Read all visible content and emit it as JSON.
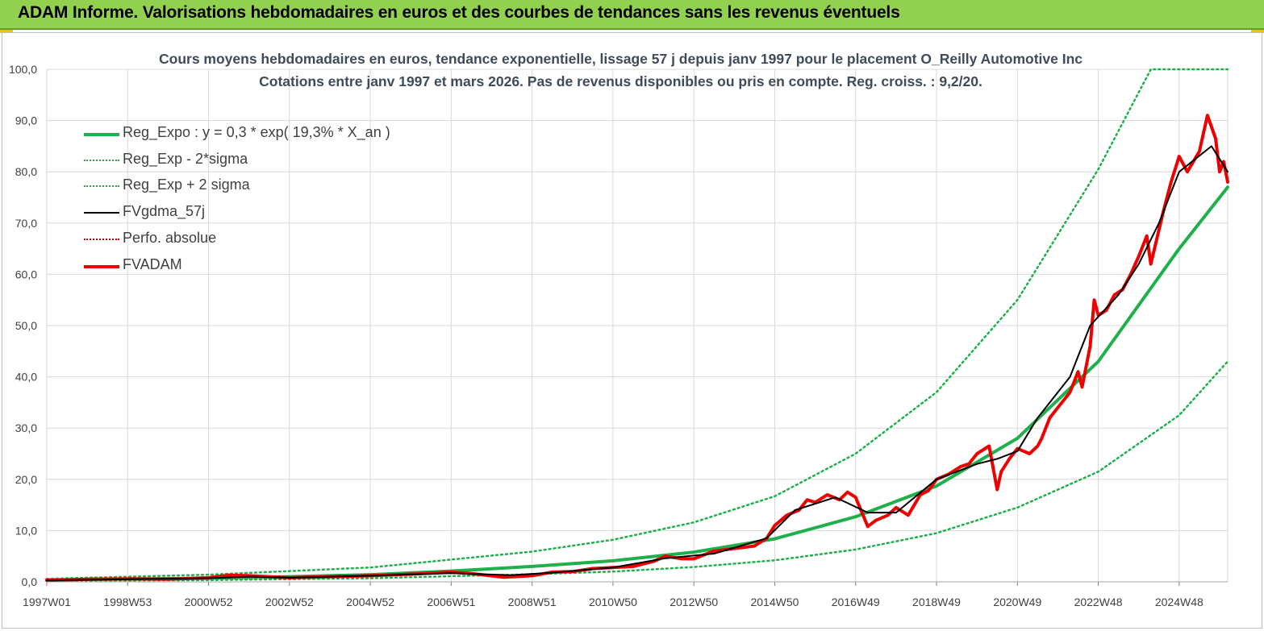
{
  "banner": {
    "title": "ADAM Informe. Valorisations hebdomadaires en euros et des courbes de tendances sans les revenus éventuels"
  },
  "colors": {
    "banner": "#92d050",
    "regexpo": "#1fb04c",
    "fvadam": "#ee0000",
    "fvgdma": "#000000",
    "perfo": "#cc0000"
  },
  "chart_data": {
    "type": "line",
    "title": "Cours moyens hebdomadaires en euros, tendance exponentielle, lissage 57 j depuis janv 1997 pour le placement O_Reilly Automotive Inc",
    "subtitle": "Cotations entre janv 1997 et mars 2026. Pas de revenus disponibles ou pris en compte. Reg. croiss. : 9,2/20.",
    "xlabel": "",
    "ylabel": "",
    "ylim": [
      0,
      100
    ],
    "yticks": [
      "0,0",
      "10,0",
      "20,0",
      "30,0",
      "40,0",
      "50,0",
      "60,0",
      "70,0",
      "80,0",
      "90,0",
      "100,0"
    ],
    "xlim": [
      1997.0,
      2026.2
    ],
    "xticks": [
      {
        "x": 1997.0,
        "label": "1997W01"
      },
      {
        "x": 1999.0,
        "label": "1998W53"
      },
      {
        "x": 2001.0,
        "label": "2000W52"
      },
      {
        "x": 2003.0,
        "label": "2002W52"
      },
      {
        "x": 2005.0,
        "label": "2004W52"
      },
      {
        "x": 2007.0,
        "label": "2006W51"
      },
      {
        "x": 2009.0,
        "label": "2008W51"
      },
      {
        "x": 2011.0,
        "label": "2010W50"
      },
      {
        "x": 2013.0,
        "label": "2012W50"
      },
      {
        "x": 2015.0,
        "label": "2014W50"
      },
      {
        "x": 2017.0,
        "label": "2016W49"
      },
      {
        "x": 2019.0,
        "label": "2018W49"
      },
      {
        "x": 2021.0,
        "label": "2020W49"
      },
      {
        "x": 2023.0,
        "label": "2022W48"
      },
      {
        "x": 2025.0,
        "label": "2024W48"
      }
    ],
    "grid": true,
    "legend_position": "top-left",
    "series": [
      {
        "name": "Reg_Expo : y = 0,3 * exp( 19,3% *  X_an )",
        "style": "solid-thick",
        "color": "#1fb04c",
        "points": [
          [
            1997,
            0.4
          ],
          [
            1999,
            0.55
          ],
          [
            2001,
            0.7
          ],
          [
            2003,
            1.0
          ],
          [
            2005,
            1.4
          ],
          [
            2007,
            2.1
          ],
          [
            2009,
            3.0
          ],
          [
            2011,
            4.1
          ],
          [
            2013,
            5.8
          ],
          [
            2015,
            8.4
          ],
          [
            2017,
            12.7
          ],
          [
            2019,
            18.7
          ],
          [
            2021,
            28.0
          ],
          [
            2023,
            43.0
          ],
          [
            2025,
            65.0
          ],
          [
            2026.2,
            77.0
          ]
        ]
      },
      {
        "name": "Reg_Exp - 2*sigma",
        "style": "dotted",
        "color": "#1fb04c",
        "points": [
          [
            1997,
            0.2
          ],
          [
            2001,
            0.35
          ],
          [
            2005,
            0.7
          ],
          [
            2009,
            1.5
          ],
          [
            2011,
            2.0
          ],
          [
            2013,
            2.9
          ],
          [
            2015,
            4.2
          ],
          [
            2017,
            6.3
          ],
          [
            2019,
            9.5
          ],
          [
            2021,
            14.5
          ],
          [
            2023,
            21.5
          ],
          [
            2025,
            32.5
          ],
          [
            2026.2,
            43.0
          ]
        ]
      },
      {
        "name": "Reg_Exp + 2 sigma",
        "style": "dotted",
        "color": "#1fb04c",
        "points": [
          [
            1997,
            0.6
          ],
          [
            2001,
            1.4
          ],
          [
            2005,
            2.8
          ],
          [
            2009,
            5.9
          ],
          [
            2011,
            8.2
          ],
          [
            2013,
            11.6
          ],
          [
            2015,
            16.7
          ],
          [
            2017,
            25.0
          ],
          [
            2019,
            37.0
          ],
          [
            2021,
            55.0
          ],
          [
            2023,
            80.5
          ],
          [
            2024.3,
            100
          ],
          [
            2026.2,
            100
          ]
        ]
      },
      {
        "name": "FVgdma_57j",
        "style": "solid-thin",
        "color": "#000000",
        "points": [
          [
            1997,
            0.3
          ],
          [
            1999,
            0.5
          ],
          [
            2001,
            0.7
          ],
          [
            2002,
            1.0
          ],
          [
            2003,
            0.8
          ],
          [
            2005,
            1.2
          ],
          [
            2007,
            1.7
          ],
          [
            2008.5,
            1.3
          ],
          [
            2009.5,
            1.8
          ],
          [
            2011,
            2.8
          ],
          [
            2012.3,
            4.6
          ],
          [
            2013.5,
            5.5
          ],
          [
            2014.8,
            8.5
          ],
          [
            2015.5,
            14.0
          ],
          [
            2016.5,
            16.5
          ],
          [
            2017.3,
            13.5
          ],
          [
            2018,
            13.5
          ],
          [
            2019,
            20.0
          ],
          [
            2020,
            23.0
          ],
          [
            2020.5,
            24.0
          ],
          [
            2021,
            25.5
          ],
          [
            2021.5,
            32.0
          ],
          [
            2022.3,
            40.0
          ],
          [
            2022.8,
            50.0
          ],
          [
            2023.5,
            56.0
          ],
          [
            2024,
            62.0
          ],
          [
            2024.5,
            70.0
          ],
          [
            2025,
            80.0
          ],
          [
            2025.8,
            85.0
          ],
          [
            2026.2,
            80.0
          ]
        ]
      },
      {
        "name": "Perfo. absolue",
        "style": "dotted",
        "color": "#cc0000",
        "points": []
      },
      {
        "name": "FVADAM",
        "style": "solid-thick",
        "color": "#ee0000",
        "points": [
          [
            1997,
            0.3
          ],
          [
            1998,
            0.5
          ],
          [
            1999,
            0.6
          ],
          [
            2000,
            0.5
          ],
          [
            2001,
            0.8
          ],
          [
            2001.5,
            1.3
          ],
          [
            2002,
            1.2
          ],
          [
            2003,
            0.8
          ],
          [
            2004,
            1.0
          ],
          [
            2005,
            1.2
          ],
          [
            2006,
            1.5
          ],
          [
            2007,
            1.9
          ],
          [
            2007.5,
            1.6
          ],
          [
            2008.3,
            0.9
          ],
          [
            2009,
            1.2
          ],
          [
            2009.5,
            1.9
          ],
          [
            2010,
            2.0
          ],
          [
            2010.5,
            2.6
          ],
          [
            2011,
            2.8
          ],
          [
            2011.5,
            3.0
          ],
          [
            2012,
            4.0
          ],
          [
            2012.3,
            5.0
          ],
          [
            2012.7,
            4.5
          ],
          [
            2013,
            4.5
          ],
          [
            2013.5,
            6.0
          ],
          [
            2014,
            6.5
          ],
          [
            2014.5,
            7.0
          ],
          [
            2014.8,
            8.5
          ],
          [
            2015,
            11.0
          ],
          [
            2015.3,
            13.0
          ],
          [
            2015.6,
            14.0
          ],
          [
            2015.8,
            16.0
          ],
          [
            2016,
            15.5
          ],
          [
            2016.3,
            17.0
          ],
          [
            2016.6,
            16.0
          ],
          [
            2016.8,
            17.5
          ],
          [
            2017.0,
            16.5
          ],
          [
            2017.3,
            10.8
          ],
          [
            2017.5,
            12.0
          ],
          [
            2017.8,
            13.0
          ],
          [
            2018,
            14.5
          ],
          [
            2018.3,
            13.0
          ],
          [
            2018.6,
            17.0
          ],
          [
            2018.8,
            17.8
          ],
          [
            2019,
            20.0
          ],
          [
            2019.3,
            21.0
          ],
          [
            2019.6,
            22.5
          ],
          [
            2019.8,
            23.0
          ],
          [
            2020,
            25.0
          ],
          [
            2020.3,
            26.5
          ],
          [
            2020.5,
            18.0
          ],
          [
            2020.6,
            21.5
          ],
          [
            2020.8,
            24.0
          ],
          [
            2021,
            26.0
          ],
          [
            2021.3,
            25.0
          ],
          [
            2021.5,
            26.5
          ],
          [
            2021.6,
            28.0
          ],
          [
            2021.8,
            32.0
          ],
          [
            2022,
            34.0
          ],
          [
            2022.3,
            37.0
          ],
          [
            2022.5,
            41.0
          ],
          [
            2022.6,
            38.0
          ],
          [
            2022.8,
            46.0
          ],
          [
            2022.9,
            55.0
          ],
          [
            2023,
            52.0
          ],
          [
            2023.2,
            53.0
          ],
          [
            2023.4,
            56.0
          ],
          [
            2023.6,
            57.0
          ],
          [
            2023.8,
            60.0
          ],
          [
            2024,
            63.5
          ],
          [
            2024.2,
            67.5
          ],
          [
            2024.3,
            62.0
          ],
          [
            2024.6,
            72.0
          ],
          [
            2024.8,
            78.0
          ],
          [
            2025.0,
            83.0
          ],
          [
            2025.2,
            80.0
          ],
          [
            2025.5,
            84.0
          ],
          [
            2025.7,
            91.0
          ],
          [
            2025.9,
            86.5
          ],
          [
            2026.0,
            80.0
          ],
          [
            2026.1,
            82.0
          ],
          [
            2026.2,
            78.0
          ]
        ]
      }
    ]
  }
}
